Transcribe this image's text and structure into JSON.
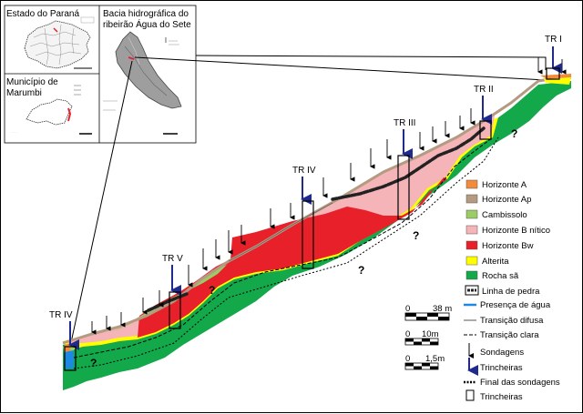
{
  "inset": {
    "parana_title": "Estado do Paraná",
    "basin_title_line1": "Bacia hidrográfica do",
    "basin_title_line2": "ribeirão Água do Sete",
    "marumbi_title_line1": "Município de",
    "marumbi_title_line2": "Marumbi"
  },
  "trenches": [
    "TR I",
    "TR II",
    "TR III",
    "TR IV",
    "TR V",
    "TR IV"
  ],
  "legend": {
    "items": [
      {
        "label": "Horizonte A",
        "color": "#f28c3c"
      },
      {
        "label": "Horizonte Ap",
        "color": "#b59a82"
      },
      {
        "label": "Cambissolo",
        "color": "#9ccc65"
      },
      {
        "label": "Horizonte B nítico",
        "color": "#f4b4b8"
      },
      {
        "label": "Horizonte Bw",
        "color": "#e8202a"
      },
      {
        "label": "Alterita",
        "color": "#ffff00"
      },
      {
        "label": "Rocha sã",
        "color": "#13a84a"
      }
    ],
    "linha_de_pedra": "Linha de pedra",
    "presenca_agua": "Presença de água",
    "transicao_difusa": "Transição difusa",
    "transicao_clara": "Transição clara",
    "sondagens": "Sondagens",
    "trincheiras_arrow": "Trincheiras",
    "final_sondagens": "Final das sondagens",
    "trincheiras_box": "Trincheiras"
  },
  "scales": [
    {
      "zero": "0",
      "value": "38 m"
    },
    {
      "zero": "0",
      "value": "10m"
    },
    {
      "zero": "0",
      "value": "1,5m"
    }
  ],
  "unknown_mark": "?"
}
